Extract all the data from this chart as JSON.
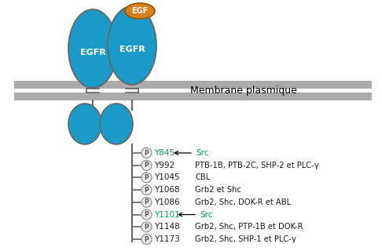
{
  "membrane_label": "Membrane plasmique",
  "egf_label": "EGF",
  "egfr_labels": [
    "EGFR",
    "EGFR"
  ],
  "phospho_sites": [
    {
      "label": "Y845",
      "color": "#00a651",
      "arrow": true,
      "src_label": "Src",
      "partners": ""
    },
    {
      "label": "Y992",
      "color": "#1a1a1a",
      "arrow": false,
      "src_label": "",
      "partners": "PTB-1B, PTB-2C, SHP-2 et PLC-γ"
    },
    {
      "label": "Y1045",
      "color": "#1a1a1a",
      "arrow": false,
      "src_label": "",
      "partners": "CBL"
    },
    {
      "label": "Y1068",
      "color": "#1a1a1a",
      "arrow": false,
      "src_label": "",
      "partners": "Grb2 et Shc"
    },
    {
      "label": "Y1086",
      "color": "#1a1a1a",
      "arrow": false,
      "src_label": "",
      "partners": "Grb2, Shc, DOK-R et ABL"
    },
    {
      "label": "Y1101",
      "color": "#00a651",
      "arrow": true,
      "src_label": "Src",
      "partners": ""
    },
    {
      "label": "Y1148",
      "color": "#1a1a1a",
      "arrow": false,
      "src_label": "",
      "partners": "Grb2, Shc, PTP-1B et DOK-R"
    },
    {
      "label": "Y1173",
      "color": "#1a1a1a",
      "arrow": false,
      "src_label": "",
      "partners": "Grb2, Shc, SHP-1 et PLC-γ"
    }
  ],
  "egfr_color": "#1a9ac9",
  "egfr_outline": "#666666",
  "egf_color": "#d97f1a",
  "egf_outline": "#8b5a00",
  "membrane_color": "#aaaaaa",
  "p_circle_facecolor": "#e8e8e8",
  "p_circle_edgecolor": "#888888",
  "green_color": "#00a651",
  "black_color": "#1a1a1a"
}
